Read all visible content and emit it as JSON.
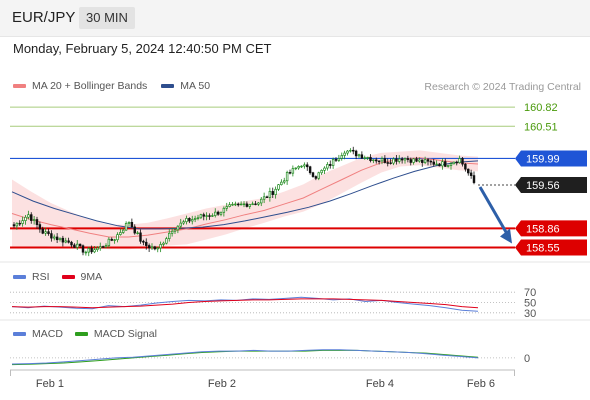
{
  "header": {
    "symbol": "EUR/JPY",
    "timeframe": "30 MIN"
  },
  "datetime": "Monday, February 5, 2024 12:40:50 PM CET",
  "credit": "Research © 2024 Trading Central",
  "legends": {
    "price": [
      {
        "label": "MA 20 + Bollinger Bands",
        "color": "#f08080"
      },
      {
        "label": "MA 50",
        "color": "#2e4e8e"
      }
    ],
    "rsi": [
      {
        "label": "RSI",
        "color": "#5b7fd9"
      },
      {
        "label": "9MA",
        "color": "#e0001b"
      }
    ],
    "macd": [
      {
        "label": "MACD",
        "color": "#5b7fd9"
      },
      {
        "label": "MACD Signal",
        "color": "#2e9e1e"
      }
    ]
  },
  "chart_data": [
    {
      "type": "line",
      "title": "EUR/JPY 30 MIN",
      "ylim": [
        158.38,
        161.0
      ],
      "x_ticks": [
        "Feb 1",
        "Feb 2",
        "Feb 4",
        "Feb 6"
      ],
      "current_price": "159.56",
      "levels": [
        {
          "value": 160.82,
          "label": "160.82",
          "kind": "target",
          "color": "#4a9a0c"
        },
        {
          "value": 160.51,
          "label": "160.51",
          "kind": "target",
          "color": "#4a9a0c"
        },
        {
          "value": 159.99,
          "label": "159.99",
          "kind": "pivot",
          "color": "#1f55d6"
        },
        {
          "value": 158.86,
          "label": "158.86",
          "kind": "support",
          "color": "#dd0000"
        },
        {
          "value": 158.55,
          "label": "158.55",
          "kind": "support",
          "color": "#dd0000"
        }
      ],
      "arrow": {
        "from": 159.56,
        "to": 158.55,
        "direction": "down",
        "color": "#2d5fa8"
      },
      "series": [
        {
          "name": "EUR/JPY",
          "style": "candles",
          "values": [
            158.9,
            159.08,
            158.8,
            158.7,
            158.62,
            158.48,
            158.55,
            158.7,
            158.97,
            158.6,
            158.52,
            158.85,
            158.98,
            159.05,
            159.1,
            159.2,
            159.25,
            159.28,
            159.45,
            159.72,
            159.9,
            159.7,
            159.9,
            160.12,
            160.05,
            159.98,
            159.95,
            160.0,
            159.95,
            159.92,
            159.9,
            159.98,
            159.6
          ]
        },
        {
          "name": "MA 20",
          "style": "line",
          "values": [
            159.1,
            159.0,
            158.92,
            158.85,
            158.78,
            158.72,
            158.72,
            158.75,
            158.8,
            158.85,
            158.93,
            159.0,
            159.08,
            159.15,
            159.25,
            159.35,
            159.5,
            159.65,
            159.8,
            159.92,
            159.98,
            160.0,
            159.96,
            159.92,
            159.9
          ]
        },
        {
          "name": "MA 50",
          "style": "line",
          "values": [
            159.45,
            159.3,
            159.18,
            159.08,
            158.98,
            158.9,
            158.85,
            158.85,
            158.86,
            158.88,
            158.92,
            158.98,
            159.05,
            159.12,
            159.2,
            159.3,
            159.42,
            159.55,
            159.67,
            159.78,
            159.87,
            159.93,
            159.95
          ]
        }
      ]
    },
    {
      "type": "line",
      "title": "RSI",
      "ylim": [
        20,
        80
      ],
      "y_ticks": [
        {
          "value": 70,
          "label": "70"
        },
        {
          "value": 50,
          "label": "50"
        },
        {
          "value": 30,
          "label": "30"
        }
      ],
      "series": [
        {
          "name": "RSI",
          "values": [
            42,
            40,
            43,
            41,
            39,
            38,
            44,
            42,
            45,
            49,
            52,
            54,
            53,
            55,
            54,
            57,
            56,
            58,
            60,
            58,
            55,
            57,
            52,
            54,
            50,
            47,
            44,
            40,
            35,
            33
          ]
        },
        {
          "name": "9MA",
          "values": [
            42,
            41,
            42,
            42,
            41,
            40,
            41,
            42,
            43,
            45,
            47,
            50,
            52,
            53,
            54,
            55,
            55,
            56,
            57,
            57,
            57,
            56,
            55,
            54,
            52,
            50,
            48,
            46,
            42,
            40
          ]
        }
      ]
    },
    {
      "type": "line",
      "title": "MACD",
      "ylim": [
        -0.12,
        0.22
      ],
      "y_ticks": [
        {
          "value": 0,
          "label": "0"
        }
      ],
      "series": [
        {
          "name": "MACD",
          "values": [
            -0.09,
            -0.085,
            -0.075,
            -0.06,
            -0.04,
            -0.02,
            0.0,
            0.01,
            0.03,
            0.05,
            0.07,
            0.09,
            0.1,
            0.1,
            0.11,
            0.1,
            0.1,
            0.11,
            0.12,
            0.12,
            0.11,
            0.1,
            0.09,
            0.08,
            0.06,
            0.04,
            0.02,
            0.0
          ]
        },
        {
          "name": "MACD Signal",
          "values": [
            -0.1,
            -0.095,
            -0.085,
            -0.075,
            -0.06,
            -0.04,
            -0.02,
            0.0,
            0.02,
            0.04,
            0.06,
            0.08,
            0.09,
            0.1,
            0.1,
            0.1,
            0.1,
            0.1,
            0.11,
            0.11,
            0.11,
            0.1,
            0.09,
            0.08,
            0.07,
            0.05,
            0.03,
            0.01
          ]
        }
      ]
    }
  ]
}
